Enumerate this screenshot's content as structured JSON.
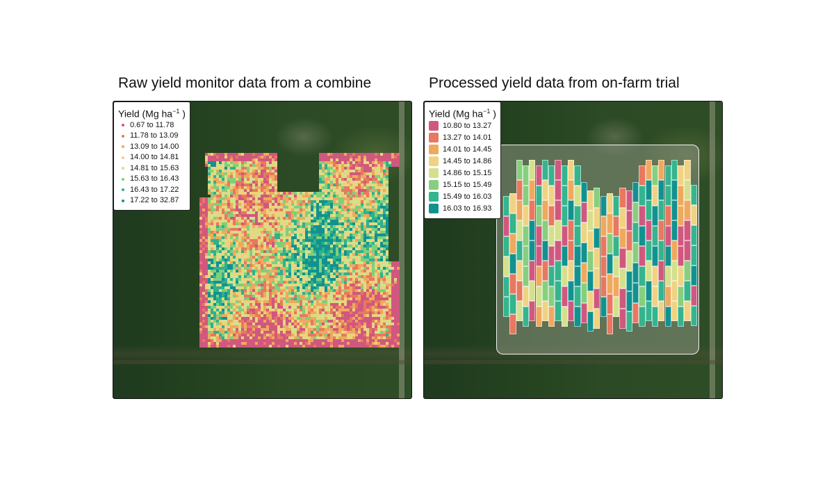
{
  "figure": {
    "panels": [
      {
        "id": "raw",
        "title": "Raw yield monitor data from a combine",
        "legend": {
          "title_prefix": "Yield (Mg ha",
          "title_sup": "−1",
          "title_suffix": " )",
          "symbol": "dot",
          "classes": [
            {
              "label": "0.67 to 11.78",
              "color": "#d0587e"
            },
            {
              "label": "11.78 to 13.09",
              "color": "#e8785f"
            },
            {
              "label": "13.09 to 14.00",
              "color": "#efa95e"
            },
            {
              "label": "14.00 to 14.81",
              "color": "#ecd27e"
            },
            {
              "label": "14.81 to 15.63",
              "color": "#d4e08c"
            },
            {
              "label": "15.63 to 16.43",
              "color": "#7fcf7c"
            },
            {
              "label": "16.43 to 17.22",
              "color": "#2fb08f"
            },
            {
              "label": "17.22 to 32.87",
              "color": "#12928f"
            }
          ]
        }
      },
      {
        "id": "processed",
        "title": "Processed yield data from on-farm trial",
        "legend": {
          "title_prefix": "Yield (Mg ha",
          "title_sup": "−1",
          "title_suffix": " )",
          "symbol": "square",
          "classes": [
            {
              "label": "10.80 to 13.27",
              "color": "#d0587e"
            },
            {
              "label": "13.27 to 14.01",
              "color": "#e8785f"
            },
            {
              "label": "14.01 to 14.45",
              "color": "#efa95e"
            },
            {
              "label": "14.45 to 14.86",
              "color": "#efd383"
            },
            {
              "label": "14.86 to 15.15",
              "color": "#d4e08c"
            },
            {
              "label": "15.15 to 15.49",
              "color": "#87cf7e"
            },
            {
              "label": "15.49 to 16.03",
              "color": "#35b48e"
            },
            {
              "label": "16.03 to 16.93",
              "color": "#12928f"
            }
          ]
        }
      }
    ]
  },
  "chart_data": [
    {
      "type": "heatmap",
      "title": "Raw yield monitor data from a combine",
      "legend_title": "Yield (Mg ha^-1)",
      "legend_position": "top-left",
      "bins": [
        "0.67 to 11.78",
        "11.78 to 13.09",
        "13.09 to 14.00",
        "14.00 to 14.81",
        "14.81 to 15.63",
        "15.63 to 16.43",
        "16.43 to 17.22",
        "17.22 to 32.87"
      ],
      "colors": [
        "#d0587e",
        "#e8785f",
        "#efa95e",
        "#ecd27e",
        "#d4e08c",
        "#7fcf7c",
        "#2fb08f",
        "#12928f"
      ],
      "notes": "Dense point yield map over satellite imagery; low-yield (pink) along field edges, higher yields (teal) in center-north and east"
    },
    {
      "type": "heatmap",
      "title": "Processed yield data from on-farm trial",
      "legend_title": "Yield (Mg ha^-1)",
      "legend_position": "top-left",
      "bins": [
        "10.80 to 13.27",
        "13.27 to 14.01",
        "14.01 to 14.45",
        "14.45 to 14.86",
        "14.86 to 15.15",
        "15.15 to 15.49",
        "15.49 to 16.03",
        "16.03 to 16.93"
      ],
      "colors": [
        "#d0587e",
        "#e8785f",
        "#efa95e",
        "#efd383",
        "#d4e08c",
        "#87cf7e",
        "#35b48e",
        "#12928f"
      ],
      "notes": "Rectangular trial plots (approx. 30 columns x 10 rows) within field boundary over satellite imagery"
    }
  ]
}
